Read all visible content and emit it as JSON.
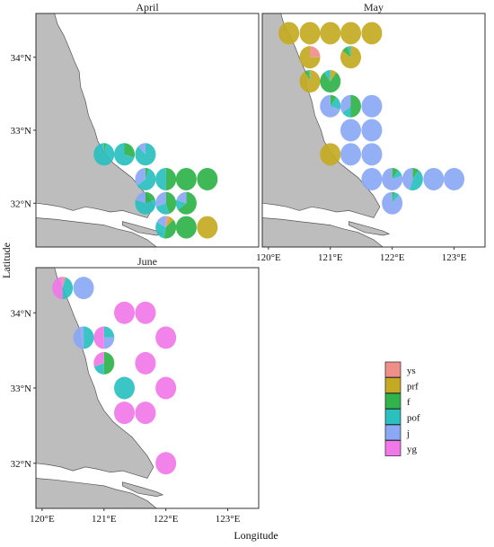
{
  "chart_data": {
    "type": "pie-map",
    "xlabel": "Longitude",
    "ylabel": "Latitude",
    "xlim": [
      119.9,
      123.5
    ],
    "ylim": [
      31.4,
      34.6
    ],
    "x_ticks": [
      {
        "value": 120,
        "label": "120°E"
      },
      {
        "value": 121,
        "label": "121°E"
      },
      {
        "value": 122,
        "label": "122°E"
      },
      {
        "value": 123,
        "label": "123°E"
      }
    ],
    "y_ticks": [
      {
        "value": 32,
        "label": "32°N"
      },
      {
        "value": 33,
        "label": "33°N"
      },
      {
        "value": 34,
        "label": "34°N"
      }
    ],
    "categories": [
      "ys",
      "prf",
      "f",
      "pof",
      "j",
      "yg"
    ],
    "colors": {
      "ys": "#f08f8a",
      "prf": "#c4aa22",
      "f": "#2fb34a",
      "pof": "#2bc0c0",
      "j": "#8aa8f5",
      "yg": "#f078e8"
    },
    "legend": [
      {
        "key": "ys",
        "label": "ys"
      },
      {
        "key": "prf",
        "label": "prf"
      },
      {
        "key": "f",
        "label": "f"
      },
      {
        "key": "pof",
        "label": "pof"
      },
      {
        "key": "j",
        "label": "j"
      },
      {
        "key": "yg",
        "label": "yg"
      }
    ],
    "legend_position": "bottom-right",
    "panels": [
      {
        "title": "April",
        "stations": [
          {
            "lon": 121.0,
            "lat": 32.67,
            "f": 0.04,
            "pof": 0.96
          },
          {
            "lon": 121.33,
            "lat": 32.67,
            "f": 0.3,
            "pof": 0.7
          },
          {
            "lon": 121.67,
            "lat": 32.67,
            "pof": 0.88,
            "j": 0.12
          },
          {
            "lon": 121.67,
            "lat": 32.33,
            "f": 0.05,
            "pof": 0.6,
            "j": 0.35
          },
          {
            "lon": 122.0,
            "lat": 32.33,
            "f": 0.5,
            "pof": 0.5
          },
          {
            "lon": 122.33,
            "lat": 32.33,
            "f": 1.0
          },
          {
            "lon": 122.67,
            "lat": 32.33,
            "f": 1.0
          },
          {
            "lon": 121.67,
            "lat": 32.0,
            "f": 0.2,
            "pof": 0.6,
            "j": 0.2
          },
          {
            "lon": 122.0,
            "lat": 32.0,
            "f": 0.45,
            "pof": 0.25,
            "j": 0.3
          },
          {
            "lon": 122.33,
            "lat": 32.0,
            "f": 0.65,
            "pof": 0.15,
            "j": 0.2
          },
          {
            "lon": 122.0,
            "lat": 31.67,
            "ys": 0.05,
            "prf": 0.08,
            "f": 0.4,
            "pof": 0.3,
            "j": 0.17
          },
          {
            "lon": 122.33,
            "lat": 31.67,
            "f": 1.0
          },
          {
            "lon": 122.67,
            "lat": 31.67,
            "prf": 1.0
          }
        ]
      },
      {
        "title": "May",
        "stations": [
          {
            "lon": 120.33,
            "lat": 34.33,
            "prf": 1.0
          },
          {
            "lon": 120.67,
            "lat": 34.33,
            "prf": 1.0
          },
          {
            "lon": 121.0,
            "lat": 34.33,
            "prf": 1.0
          },
          {
            "lon": 121.33,
            "lat": 34.33,
            "prf": 1.0
          },
          {
            "lon": 121.67,
            "lat": 34.33,
            "prf": 1.0
          },
          {
            "lon": 120.67,
            "lat": 34.0,
            "ys": 0.25,
            "prf": 0.75
          },
          {
            "lon": 121.33,
            "lat": 34.0,
            "f": 0.1,
            "pof": 0.05,
            "prf": 0.85
          },
          {
            "lon": 120.67,
            "lat": 33.67,
            "f": 0.06,
            "pof": 0.02,
            "prf": 0.92
          },
          {
            "lon": 121.0,
            "lat": 33.67,
            "prf": 0.1,
            "f": 0.8,
            "pof": 0.1
          },
          {
            "lon": 121.0,
            "lat": 33.33,
            "f": 0.1,
            "pof": 0.2,
            "j": 0.7
          },
          {
            "lon": 121.33,
            "lat": 33.33,
            "f": 0.5,
            "pof": 0.15,
            "j": 0.35
          },
          {
            "lon": 121.67,
            "lat": 33.33,
            "j": 1.0
          },
          {
            "lon": 121.33,
            "lat": 33.0,
            "j": 1.0
          },
          {
            "lon": 121.67,
            "lat": 33.0,
            "j": 1.0
          },
          {
            "lon": 121.0,
            "lat": 32.67,
            "prf": 1.0
          },
          {
            "lon": 121.33,
            "lat": 32.67,
            "j": 1.0
          },
          {
            "lon": 121.67,
            "lat": 32.67,
            "j": 1.0
          },
          {
            "lon": 121.67,
            "lat": 32.33,
            "j": 1.0
          },
          {
            "lon": 122.0,
            "lat": 32.33,
            "f": 0.1,
            "pof": 0.1,
            "j": 0.8
          },
          {
            "lon": 122.33,
            "lat": 32.33,
            "f": 0.1,
            "pof": 0.45,
            "j": 0.45
          },
          {
            "lon": 122.67,
            "lat": 32.33,
            "j": 1.0
          },
          {
            "lon": 123.0,
            "lat": 32.33,
            "j": 1.0
          },
          {
            "lon": 122.0,
            "lat": 32.0,
            "f": 0.04,
            "pof": 0.08,
            "j": 0.88
          }
        ]
      },
      {
        "title": "June",
        "stations": [
          {
            "lon": 120.33,
            "lat": 34.33,
            "ys": 0.05,
            "pof": 0.45,
            "yg": 0.5
          },
          {
            "lon": 120.67,
            "lat": 34.33,
            "j": 1.0
          },
          {
            "lon": 121.33,
            "lat": 34.0,
            "yg": 1.0
          },
          {
            "lon": 121.67,
            "lat": 34.0,
            "yg": 1.0
          },
          {
            "lon": 120.67,
            "lat": 33.67,
            "pof": 0.5,
            "j": 0.5
          },
          {
            "lon": 121.0,
            "lat": 33.67,
            "pof": 0.25,
            "j": 0.25,
            "yg": 0.5
          },
          {
            "lon": 122.0,
            "lat": 33.67,
            "yg": 1.0
          },
          {
            "lon": 121.0,
            "lat": 33.33,
            "f": 0.5,
            "pof": 0.2,
            "yg": 0.3
          },
          {
            "lon": 121.67,
            "lat": 33.33,
            "yg": 1.0
          },
          {
            "lon": 121.33,
            "lat": 33.0,
            "pof": 1.0
          },
          {
            "lon": 122.0,
            "lat": 33.0,
            "yg": 1.0
          },
          {
            "lon": 121.33,
            "lat": 32.67,
            "yg": 1.0
          },
          {
            "lon": 121.67,
            "lat": 32.67,
            "yg": 1.0
          },
          {
            "lon": 122.0,
            "lat": 32.0,
            "yg": 1.0
          }
        ]
      }
    ]
  }
}
